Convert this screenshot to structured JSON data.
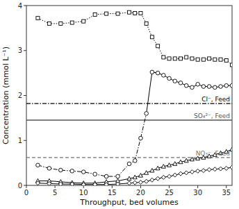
{
  "chart_data": {
    "type": "line",
    "xlabel": "Throughput, bed volumes",
    "ylabel": "Concentration (mmol L⁻¹)",
    "xlim": [
      0,
      36
    ],
    "ylim": [
      0,
      4.0
    ],
    "xticks": [
      0,
      5,
      10,
      15,
      20,
      25,
      30,
      35
    ],
    "yticks": [
      0,
      1,
      2,
      3,
      4
    ],
    "grid": false,
    "reference_lines": [
      {
        "label": "Cl⁻, Feed",
        "y": 1.82,
        "color": "#000000",
        "line_style": "dash-dot"
      },
      {
        "label": "SO₄²⁻, Feed",
        "y": 1.45,
        "color": "#555555",
        "line_style": "solid"
      },
      {
        "label": "NO₃⁻, Feed",
        "y": 0.62,
        "color": "#777777",
        "line_style": "dashed"
      }
    ],
    "series": [
      {
        "color": "#000000",
        "marker": "square",
        "line_style": "dotted",
        "x": [
          2,
          4,
          6,
          8,
          10,
          12,
          14,
          16,
          18,
          19,
          20,
          21,
          22,
          23,
          24,
          25,
          26,
          27,
          28,
          29,
          30,
          31,
          32,
          33,
          34,
          35,
          36
        ],
        "values": [
          3.72,
          3.6,
          3.6,
          3.62,
          3.65,
          3.8,
          3.82,
          3.82,
          3.85,
          3.83,
          3.83,
          3.6,
          3.3,
          3.1,
          2.85,
          2.82,
          2.82,
          2.82,
          2.85,
          2.82,
          2.8,
          2.8,
          2.82,
          2.8,
          2.8,
          2.78,
          2.68
        ]
      },
      {
        "color": "#000000",
        "marker": "circle",
        "line_style": "dash-dot",
        "x": [
          2,
          4,
          6,
          8,
          10,
          12,
          14,
          16,
          18,
          19,
          20,
          21
        ],
        "values": [
          0.45,
          0.38,
          0.34,
          0.32,
          0.3,
          0.25,
          0.2,
          0.2,
          0.48,
          0.55,
          1.05,
          1.6
        ]
      },
      {
        "color": "#000000",
        "marker": "circle",
        "line_style": "solid",
        "x": [
          22,
          23,
          24,
          25,
          26,
          27,
          28,
          29,
          30,
          31,
          32,
          33,
          34,
          35,
          36
        ],
        "values": [
          2.52,
          2.5,
          2.45,
          2.38,
          2.32,
          2.28,
          2.22,
          2.18,
          2.25,
          2.2,
          2.2,
          2.18,
          2.2,
          2.22,
          2.22
        ]
      },
      {
        "color": "#000000",
        "marker": "triangle",
        "line_style": "solid",
        "x": [
          2,
          4,
          6,
          8,
          10,
          12,
          14,
          16,
          18,
          19,
          20,
          21,
          22,
          23,
          24,
          25,
          26,
          27,
          28,
          29,
          30,
          31,
          32,
          33,
          34,
          35,
          36
        ],
        "values": [
          0.1,
          0.1,
          0.08,
          0.06,
          0.05,
          0.05,
          0.08,
          0.1,
          0.15,
          0.18,
          0.22,
          0.28,
          0.33,
          0.38,
          0.42,
          0.45,
          0.48,
          0.52,
          0.55,
          0.58,
          0.6,
          0.62,
          0.65,
          0.68,
          0.72,
          0.75,
          0.8
        ]
      },
      {
        "color": "#000000",
        "marker": "diamond",
        "line_style": "solid",
        "x": [
          2,
          4,
          6,
          8,
          10,
          12,
          14,
          16,
          18,
          19,
          20,
          21,
          22,
          23,
          24,
          25,
          26,
          27,
          28,
          29,
          30,
          31,
          32,
          33,
          34,
          35,
          36
        ],
        "values": [
          0.05,
          0.04,
          0.03,
          0.03,
          0.02,
          0.02,
          0.02,
          0.03,
          0.05,
          0.06,
          0.07,
          0.09,
          0.12,
          0.15,
          0.18,
          0.2,
          0.23,
          0.26,
          0.28,
          0.3,
          0.32,
          0.33,
          0.35,
          0.36,
          0.37,
          0.38,
          0.4
        ]
      }
    ]
  }
}
